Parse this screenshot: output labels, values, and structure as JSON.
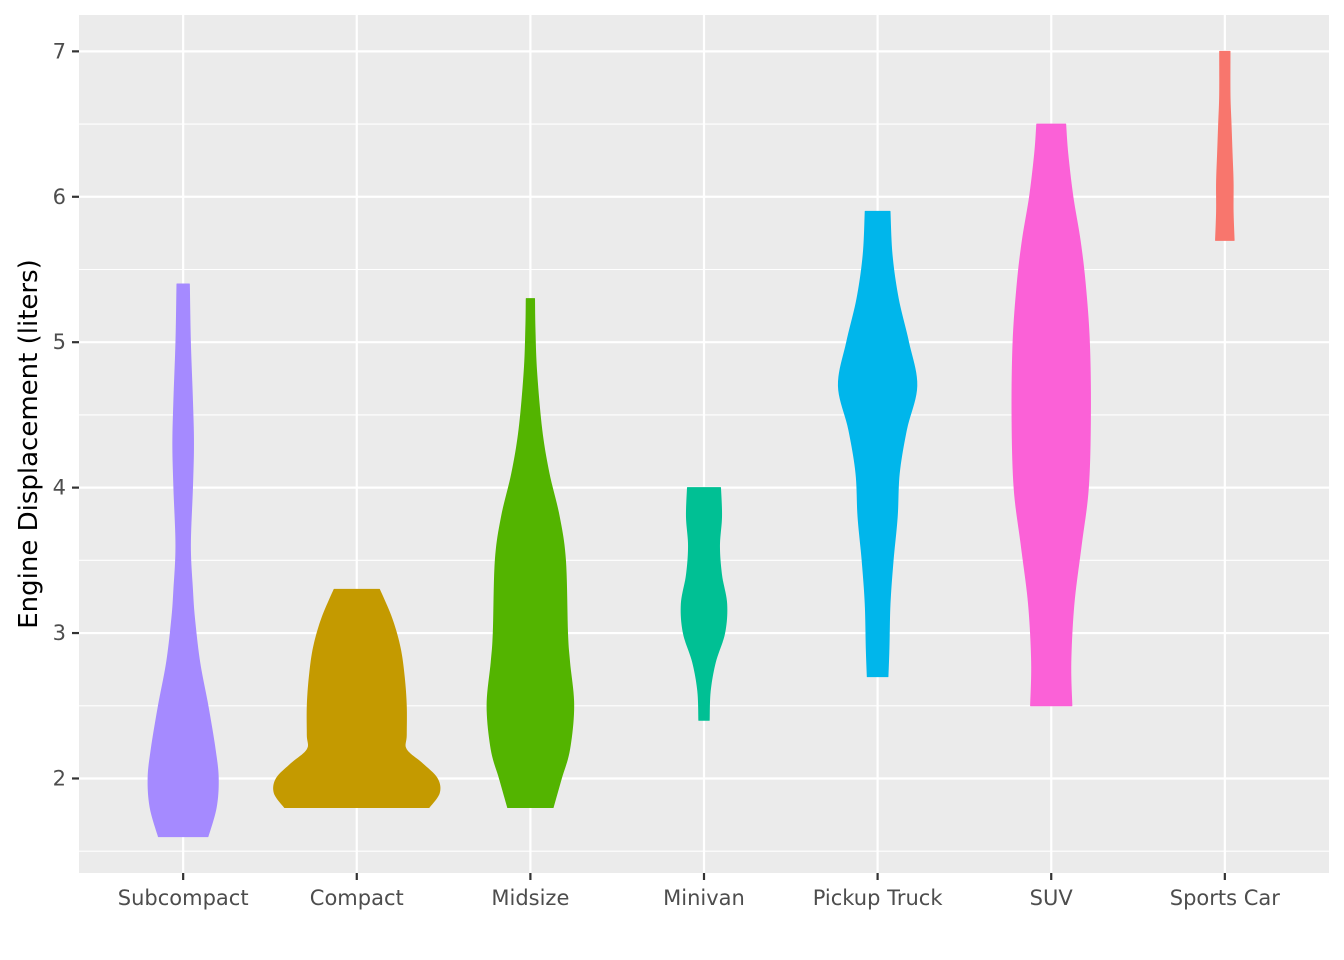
{
  "chart_data": {
    "type": "violin",
    "title": "",
    "xlabel": "",
    "ylabel": "Engine Displacement (liters)",
    "ylim": [
      1.35,
      7.25
    ],
    "yticks": [
      2,
      3,
      4,
      5,
      6,
      7
    ],
    "grid": true,
    "legend": "none",
    "background": "#ebebeb",
    "categories": [
      "Subcompact",
      "Compact",
      "Midsize",
      "Minivan",
      "Pickup Truck",
      "SUV",
      "Sports Car"
    ],
    "series": [
      {
        "category": "Subcompact",
        "color": "#a58aff",
        "range": [
          1.6,
          5.4
        ],
        "density": [
          [
            1.6,
            0.12
          ],
          [
            1.8,
            0.16
          ],
          [
            2.0,
            0.17
          ],
          [
            2.2,
            0.155
          ],
          [
            2.5,
            0.12
          ],
          [
            2.8,
            0.08
          ],
          [
            3.1,
            0.055
          ],
          [
            3.3,
            0.045
          ],
          [
            3.6,
            0.035
          ],
          [
            4.0,
            0.045
          ],
          [
            4.3,
            0.05
          ],
          [
            4.6,
            0.045
          ],
          [
            5.0,
            0.035
          ],
          [
            5.4,
            0.03
          ]
        ]
      },
      {
        "category": "Compact",
        "color": "#c49a00",
        "range": [
          1.8,
          3.3
        ],
        "density": [
          [
            1.8,
            0.35
          ],
          [
            1.9,
            0.4
          ],
          [
            2.0,
            0.39
          ],
          [
            2.1,
            0.32
          ],
          [
            2.2,
            0.24
          ],
          [
            2.3,
            0.24
          ],
          [
            2.5,
            0.24
          ],
          [
            2.7,
            0.23
          ],
          [
            2.9,
            0.21
          ],
          [
            3.1,
            0.17
          ],
          [
            3.3,
            0.11
          ]
        ]
      },
      {
        "category": "Midsize",
        "color": "#53b400",
        "range": [
          1.8,
          5.3
        ],
        "density": [
          [
            1.8,
            0.11
          ],
          [
            2.0,
            0.15
          ],
          [
            2.2,
            0.19
          ],
          [
            2.5,
            0.21
          ],
          [
            2.8,
            0.19
          ],
          [
            3.0,
            0.18
          ],
          [
            3.5,
            0.17
          ],
          [
            3.8,
            0.14
          ],
          [
            4.1,
            0.09
          ],
          [
            4.4,
            0.055
          ],
          [
            4.8,
            0.03
          ],
          [
            5.1,
            0.022
          ],
          [
            5.3,
            0.02
          ]
        ]
      },
      {
        "category": "Minivan",
        "color": "#00c094",
        "range": [
          2.4,
          4.0
        ],
        "density": [
          [
            2.4,
            0.025
          ],
          [
            2.6,
            0.03
          ],
          [
            2.8,
            0.055
          ],
          [
            3.0,
            0.1
          ],
          [
            3.2,
            0.11
          ],
          [
            3.4,
            0.085
          ],
          [
            3.6,
            0.075
          ],
          [
            3.8,
            0.085
          ],
          [
            4.0,
            0.08
          ]
        ]
      },
      {
        "category": "Pickup Truck",
        "color": "#00b6eb",
        "range": [
          2.7,
          5.9
        ],
        "density": [
          [
            2.7,
            0.05
          ],
          [
            2.9,
            0.055
          ],
          [
            3.2,
            0.06
          ],
          [
            3.5,
            0.075
          ],
          [
            3.8,
            0.095
          ],
          [
            4.1,
            0.105
          ],
          [
            4.4,
            0.14
          ],
          [
            4.7,
            0.19
          ],
          [
            5.0,
            0.15
          ],
          [
            5.3,
            0.1
          ],
          [
            5.6,
            0.07
          ],
          [
            5.9,
            0.06
          ]
        ]
      },
      {
        "category": "SUV",
        "color": "#fb61d7",
        "range": [
          2.5,
          6.5
        ],
        "density": [
          [
            2.5,
            0.1
          ],
          [
            2.8,
            0.095
          ],
          [
            3.2,
            0.11
          ],
          [
            3.6,
            0.145
          ],
          [
            4.0,
            0.18
          ],
          [
            4.5,
            0.19
          ],
          [
            5.0,
            0.185
          ],
          [
            5.4,
            0.165
          ],
          [
            5.7,
            0.14
          ],
          [
            6.0,
            0.105
          ],
          [
            6.3,
            0.08
          ],
          [
            6.5,
            0.07
          ]
        ]
      },
      {
        "category": "Sports Car",
        "color": "#f8766d",
        "range": [
          5.7,
          7.0
        ],
        "density": [
          [
            5.7,
            0.045
          ],
          [
            5.9,
            0.04
          ],
          [
            6.1,
            0.04
          ],
          [
            6.3,
            0.035
          ],
          [
            6.5,
            0.03
          ],
          [
            6.7,
            0.025
          ],
          [
            7.0,
            0.025
          ]
        ]
      }
    ]
  }
}
